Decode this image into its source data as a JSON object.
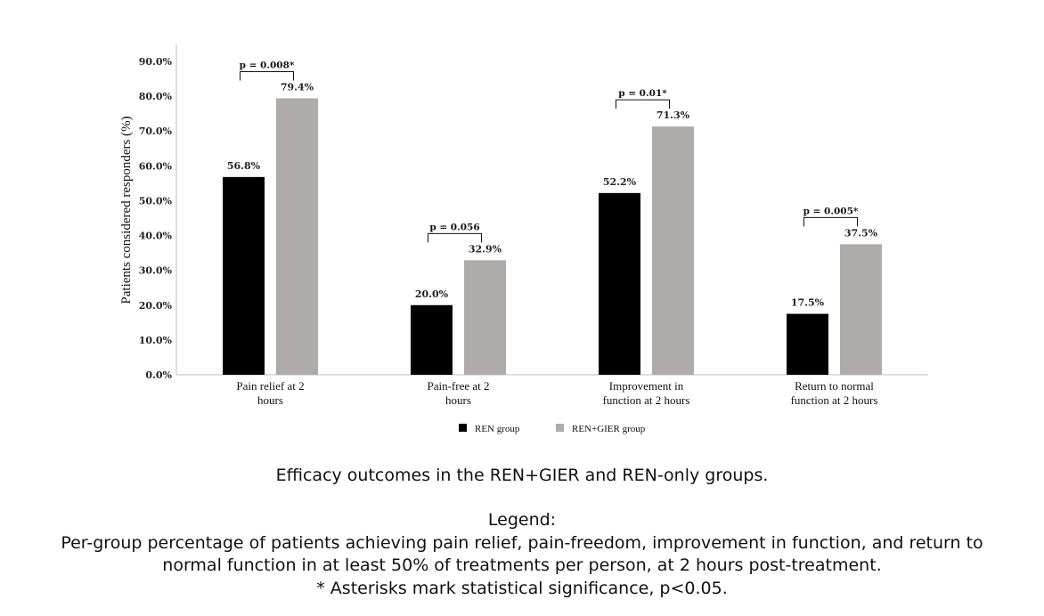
{
  "chart_data": {
    "type": "bar",
    "ylabel": "Patients considered responders (%)",
    "ylim": [
      0,
      90
    ],
    "yticks": [
      "0.0%",
      "10.0%",
      "20.0%",
      "30.0%",
      "40.0%",
      "50.0%",
      "60.0%",
      "70.0%",
      "80.0%",
      "90.0%"
    ],
    "categories": [
      [
        "Pain relief at 2",
        "hours"
      ],
      [
        "Pain-free at 2",
        "hours"
      ],
      [
        "Improvement in",
        "function at 2 hours"
      ],
      [
        "Return to normal",
        "function at 2 hours"
      ]
    ],
    "series": [
      {
        "name": "REN group",
        "color": "#000000",
        "values": [
          56.8,
          20.0,
          52.2,
          17.5
        ],
        "labels": [
          "56.8%",
          "20.0%",
          "52.2%",
          "17.5%"
        ]
      },
      {
        "name": "REN+GIER group",
        "color": "#afabab",
        "values": [
          79.4,
          32.9,
          71.3,
          37.5
        ],
        "labels": [
          "79.4%",
          "32.9%",
          "71.3%",
          "37.5%"
        ]
      }
    ],
    "p_values": [
      "p = 0.008*",
      "p = 0.056",
      "p = 0.01*",
      "p = 0.005*"
    ],
    "legend_position": "bottom",
    "grid": false
  },
  "caption": {
    "title": "Efficacy outcomes in the REN+GIER and REN-only groups.",
    "legend_heading": "Legend:",
    "legend_line1": "Per-group percentage of patients achieving pain relief, pain-freedom, improvement in function, and return to",
    "legend_line2": "normal function in at least 50% of treatments per person, at 2 hours post-treatment.",
    "legend_line3": "* Asterisks mark statistical significance, p<0.05."
  }
}
